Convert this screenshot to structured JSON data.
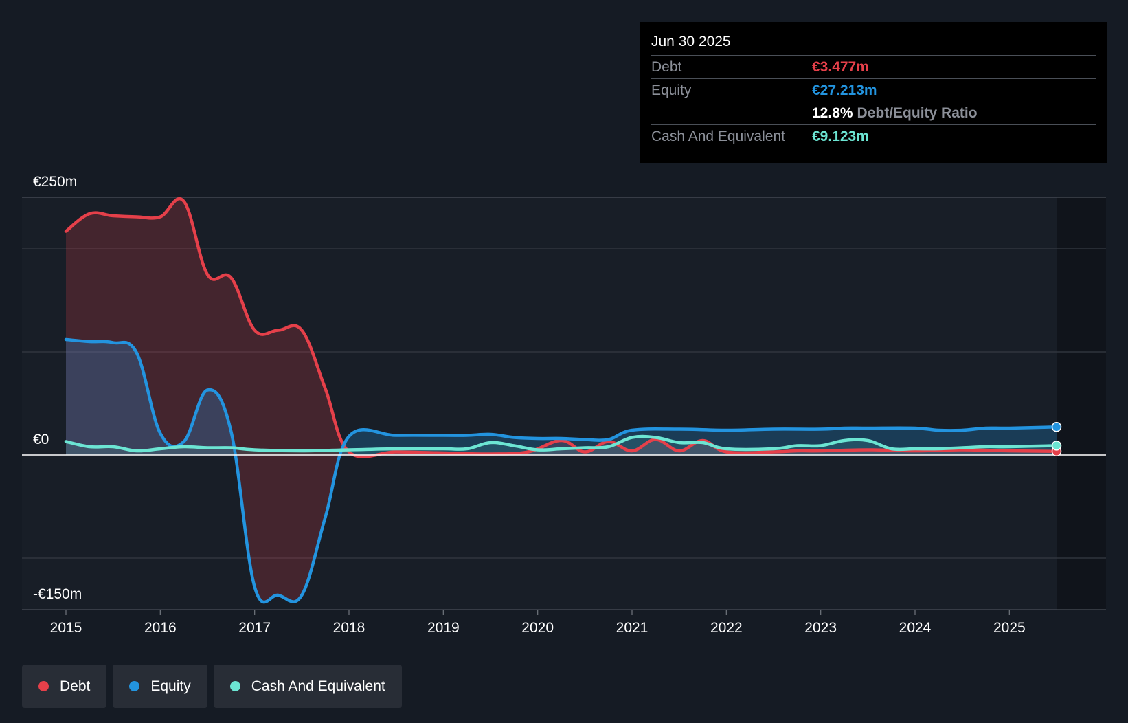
{
  "tooltip": {
    "date": "Jun 30 2025",
    "debt_label": "Debt",
    "debt_value": "€3.477m",
    "equity_label": "Equity",
    "equity_value": "€27.213m",
    "ratio_value": "12.8%",
    "ratio_label": "Debt/Equity Ratio",
    "cash_label": "Cash And Equivalent",
    "cash_value": "€9.123m"
  },
  "legend": {
    "debt": "Debt",
    "equity": "Equity",
    "cash": "Cash And Equivalent"
  },
  "colors": {
    "debt": "#e5404a",
    "equity": "#2394df",
    "cash": "#6ce5d3",
    "background": "#151b24",
    "grid": "#3a3f48",
    "text": "#ffffff"
  },
  "chart_data": {
    "type": "area",
    "title": "",
    "xlabel": "",
    "ylabel": "",
    "ylim": [
      -150,
      250
    ],
    "y_tick_labels": [
      {
        "value": 250,
        "label": "€250m"
      },
      {
        "value": 0,
        "label": "€0"
      },
      {
        "value": -150,
        "label": "-€150m"
      }
    ],
    "gridlines": [
      250,
      200,
      100,
      0,
      -100,
      -150
    ],
    "xlim": [
      2015,
      2025.75
    ],
    "x_ticks": [
      2015,
      2016,
      2017,
      2018,
      2019,
      2020,
      2021,
      2022,
      2023,
      2024,
      2025
    ],
    "highlight_start": 2025.5,
    "series": [
      {
        "name": "Debt",
        "key": "debt",
        "points": [
          [
            2015.0,
            217
          ],
          [
            2015.25,
            234
          ],
          [
            2015.5,
            232
          ],
          [
            2015.75,
            231
          ],
          [
            2016.0,
            231
          ],
          [
            2016.25,
            246
          ],
          [
            2016.5,
            175
          ],
          [
            2016.75,
            172
          ],
          [
            2017.0,
            121
          ],
          [
            2017.25,
            121
          ],
          [
            2017.5,
            121
          ],
          [
            2017.75,
            64
          ],
          [
            2018.0,
            3
          ],
          [
            2018.5,
            3
          ],
          [
            2019.0,
            2
          ],
          [
            2019.5,
            1
          ],
          [
            2019.9,
            3
          ],
          [
            2020.25,
            14
          ],
          [
            2020.5,
            3
          ],
          [
            2020.75,
            13
          ],
          [
            2021.0,
            4
          ],
          [
            2021.25,
            15
          ],
          [
            2021.5,
            4
          ],
          [
            2021.75,
            14
          ],
          [
            2022.0,
            3
          ],
          [
            2022.5,
            3
          ],
          [
            2022.75,
            4
          ],
          [
            2023.0,
            4
          ],
          [
            2023.5,
            5
          ],
          [
            2024.0,
            4
          ],
          [
            2024.5,
            5
          ],
          [
            2025.0,
            4
          ],
          [
            2025.5,
            3.5
          ]
        ]
      },
      {
        "name": "Equity",
        "key": "equity",
        "points": [
          [
            2015.0,
            112
          ],
          [
            2015.25,
            110
          ],
          [
            2015.5,
            109
          ],
          [
            2015.75,
            99
          ],
          [
            2016.0,
            21
          ],
          [
            2016.25,
            13
          ],
          [
            2016.5,
            63
          ],
          [
            2016.75,
            23
          ],
          [
            2017.0,
            -128
          ],
          [
            2017.25,
            -136
          ],
          [
            2017.5,
            -136
          ],
          [
            2017.75,
            -60
          ],
          [
            2018.0,
            18
          ],
          [
            2018.5,
            19
          ],
          [
            2019.0,
            19
          ],
          [
            2019.25,
            19
          ],
          [
            2019.5,
            20
          ],
          [
            2019.75,
            17
          ],
          [
            2020.0,
            16
          ],
          [
            2020.25,
            16
          ],
          [
            2020.5,
            15
          ],
          [
            2020.75,
            15
          ],
          [
            2021.0,
            24
          ],
          [
            2021.5,
            25
          ],
          [
            2022.0,
            24
          ],
          [
            2022.5,
            25
          ],
          [
            2023.0,
            25
          ],
          [
            2023.25,
            26
          ],
          [
            2023.5,
            26
          ],
          [
            2024.0,
            26
          ],
          [
            2024.25,
            24
          ],
          [
            2024.5,
            24
          ],
          [
            2024.75,
            26
          ],
          [
            2025.0,
            26
          ],
          [
            2025.5,
            27.2
          ]
        ]
      },
      {
        "name": "Cash And Equivalent",
        "key": "cash",
        "points": [
          [
            2015.0,
            13
          ],
          [
            2015.25,
            8
          ],
          [
            2015.5,
            8
          ],
          [
            2015.75,
            4
          ],
          [
            2016.0,
            6
          ],
          [
            2016.25,
            8
          ],
          [
            2016.5,
            7
          ],
          [
            2016.75,
            7
          ],
          [
            2017.0,
            5
          ],
          [
            2017.5,
            4
          ],
          [
            2018.0,
            5
          ],
          [
            2018.5,
            6
          ],
          [
            2019.0,
            6
          ],
          [
            2019.25,
            6
          ],
          [
            2019.5,
            12
          ],
          [
            2019.75,
            9
          ],
          [
            2020.0,
            5
          ],
          [
            2020.25,
            6
          ],
          [
            2020.5,
            7
          ],
          [
            2020.75,
            8
          ],
          [
            2021.0,
            17
          ],
          [
            2021.25,
            17
          ],
          [
            2021.5,
            12
          ],
          [
            2021.75,
            12
          ],
          [
            2022.0,
            6
          ],
          [
            2022.5,
            6
          ],
          [
            2022.75,
            9
          ],
          [
            2023.0,
            9
          ],
          [
            2023.25,
            14
          ],
          [
            2023.5,
            14
          ],
          [
            2023.75,
            6
          ],
          [
            2024.0,
            6
          ],
          [
            2024.25,
            6
          ],
          [
            2024.5,
            7
          ],
          [
            2024.75,
            8
          ],
          [
            2025.0,
            8
          ],
          [
            2025.5,
            9.1
          ]
        ]
      }
    ]
  }
}
